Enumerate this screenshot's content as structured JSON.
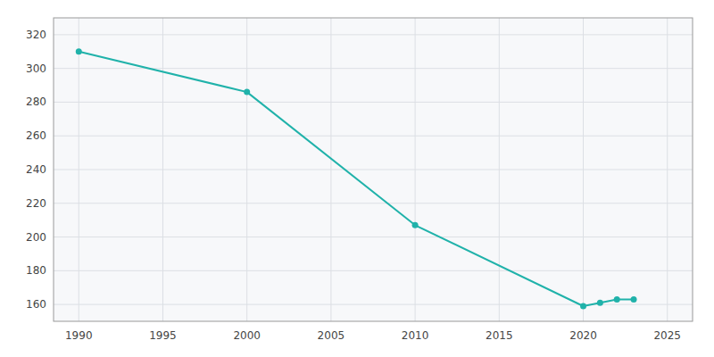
{
  "chart_data": {
    "type": "line",
    "x": [
      1990,
      2000,
      2010,
      2020,
      2021,
      2022,
      2023
    ],
    "values": [
      310,
      286,
      207,
      159,
      161,
      163,
      163
    ],
    "color": "#20B2AA",
    "marker": "circle",
    "xlim": [
      1988.5,
      2026.5
    ],
    "ylim": [
      150,
      330
    ],
    "xticks": [
      1990,
      1995,
      2000,
      2005,
      2010,
      2015,
      2020,
      2025
    ],
    "yticks": [
      160,
      180,
      200,
      220,
      240,
      260,
      280,
      300,
      320
    ],
    "grid": true
  }
}
